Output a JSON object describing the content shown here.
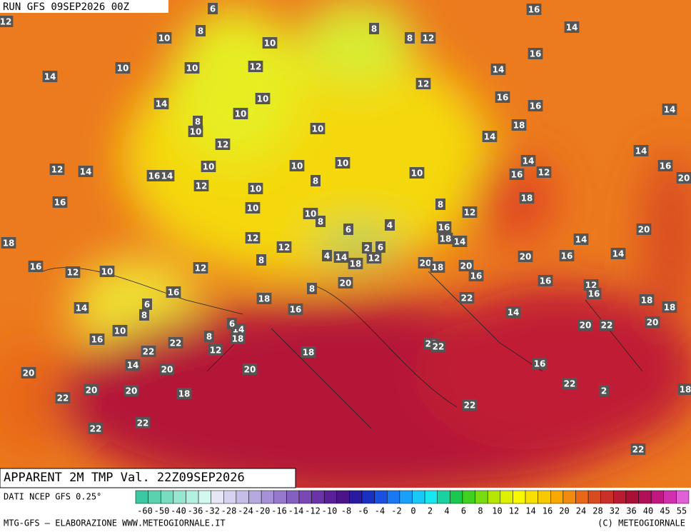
{
  "header": {
    "run": "RUN GFS 09SEP2026 00Z"
  },
  "map_labels": [
    6,
    12,
    16,
    10,
    8,
    10,
    8,
    8,
    12,
    14,
    10,
    10,
    12,
    16,
    14,
    14,
    12,
    14,
    10,
    16,
    16,
    10,
    8,
    10,
    10,
    18,
    14,
    14,
    12,
    14,
    10,
    10,
    10,
    12,
    14,
    10,
    14,
    16,
    12,
    16,
    20,
    16,
    14,
    8,
    12,
    10,
    18,
    16,
    8,
    12,
    10,
    10,
    8,
    6,
    4,
    16,
    20,
    18,
    14,
    12,
    14,
    18,
    12,
    2,
    6,
    14,
    4,
    12,
    8,
    18,
    16,
    14,
    20,
    16,
    12,
    10,
    12,
    20,
    18,
    20,
    16,
    20,
    16,
    12,
    16,
    16,
    8,
    18,
    22,
    18,
    6,
    14,
    18,
    8,
    16,
    14,
    14,
    6,
    20,
    22,
    20,
    10,
    16,
    8,
    22,
    18,
    12,
    22,
    22,
    22,
    18,
    14,
    20,
    20,
    16,
    20,
    20,
    20,
    18,
    22,
    2,
    18,
    22,
    22,
    22,
    22,
    22
  ],
  "footer": {
    "title": "APPARENT 2M TMP Val. 22Z09SEP2026",
    "source": "DATI NCEP GFS 0.25°",
    "credit": "MTG-GFS — ELABORAZIONE WWW.METEOGIORNALE.IT",
    "copyright": "(C) METEOGIORNALE"
  },
  "scale": {
    "labels": [
      "-60",
      "-50",
      "-40",
      "-36",
      "-32",
      "-28",
      "-24",
      "-20",
      "-16",
      "-14",
      "-12",
      "-10",
      "-8",
      "-6",
      "-4",
      "-2",
      "0",
      "2",
      "4",
      "6",
      "8",
      "10",
      "12",
      "14",
      "16",
      "20",
      "24",
      "28",
      "32",
      "36",
      "40",
      "45",
      "55"
    ],
    "colors": [
      "#3cc8a0",
      "#5ad2b0",
      "#78dcc0",
      "#96e6d0",
      "#b4f0e0",
      "#d2f8f0",
      "#e6e6f6",
      "#d6d2f0",
      "#c6bee8",
      "#b6a8e0",
      "#a690d6",
      "#9678cc",
      "#8660c0",
      "#7a48b4",
      "#6a34a8",
      "#5a2098",
      "#4a1488",
      "#2a1aa0",
      "#1a30c0",
      "#1a50e0",
      "#1a78f0",
      "#1aa0f8",
      "#1ac8f8",
      "#1ae6f0",
      "#1ad2a0",
      "#1ac850",
      "#40d020",
      "#78dc10",
      "#b4e600",
      "#dcf000",
      "#f8f800",
      "#f8e000",
      "#f8c800",
      "#f8a800",
      "#f08a10",
      "#e86818",
      "#d84a20",
      "#c83028",
      "#b81c30",
      "#a81038",
      "#b01058",
      "#c01880",
      "#d030b0",
      "#e060d8"
    ]
  }
}
